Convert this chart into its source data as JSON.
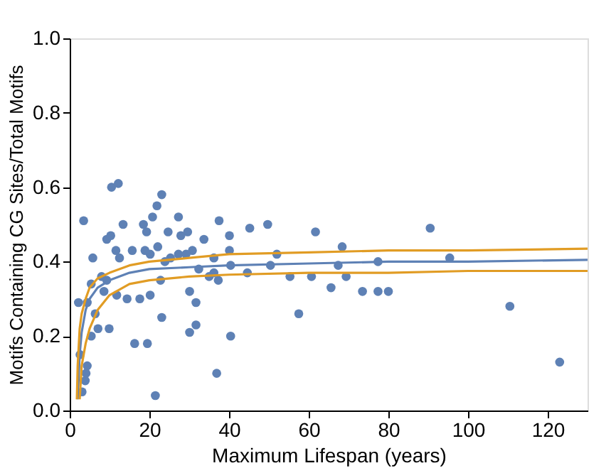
{
  "chart_data": {
    "type": "scatter",
    "xlabel": "Maximum Lifespan (years)",
    "ylabel": "Motifs Containing CG Sites/Total Motifs",
    "xlim": [
      0,
      130
    ],
    "ylim": [
      0,
      1
    ],
    "xticks": [
      0,
      20,
      40,
      60,
      80,
      100,
      120
    ],
    "yticks": [
      {
        "value": 0,
        "label": "0.0"
      },
      0.2,
      0.4,
      0.6,
      0.8,
      {
        "value": 1,
        "label": "1.0"
      }
    ],
    "grid": false,
    "series": [
      {
        "marker": "circle",
        "color": "#5e81b5",
        "x": [
          3.5,
          2.2,
          4.4,
          2.6,
          4.4,
          3.9,
          3.1,
          4.1,
          5.8,
          5.4,
          6.4,
          5.4,
          7.1,
          9.3,
          10.3,
          9.9,
          8.6,
          10.5,
          12.2,
          11.6,
          12.5,
          11.8,
          13.4,
          14.4,
          15.7,
          16.3,
          17.6,
          18.5,
          19.3,
          19.5,
          20.2,
          20.8,
          21.9,
          23.1,
          21.5,
          23.1,
          22.8,
          24.7,
          27.3,
          27.9,
          29.6,
          30.1,
          31.7,
          31.7,
          30.1,
          30.8,
          32.4,
          33.7,
          36.2,
          37.3,
          37.5,
          36.9,
          40.1,
          40.1,
          40.4,
          40.4,
          44.6,
          45.2,
          49.7,
          50.4,
          52,
          55.3,
          57.5,
          60.7,
          61.7,
          65.6,
          67.4,
          68.4,
          69.4,
          73.5,
          77.4,
          77.4,
          80,
          90.5,
          95.4,
          110.5,
          123,
          20.2,
          22.1,
          23.9,
          25.3,
          18.9,
          27.3,
          29.2,
          8,
          9.3,
          35,
          36.2
        ],
        "values": [
          0.51,
          0.29,
          0.29,
          0.15,
          0.12,
          0.08,
          0.05,
          0.1,
          0.41,
          0.34,
          0.26,
          0.2,
          0.22,
          0.46,
          0.47,
          0.22,
          0.32,
          0.6,
          0.61,
          0.43,
          0.41,
          0.31,
          0.5,
          0.3,
          0.43,
          0.18,
          0.3,
          0.5,
          0.48,
          0.18,
          0.31,
          0.52,
          0.55,
          0.58,
          0.04,
          0.25,
          0.35,
          0.48,
          0.52,
          0.47,
          0.48,
          0.21,
          0.23,
          0.29,
          0.32,
          0.43,
          0.38,
          0.46,
          0.37,
          0.35,
          0.51,
          0.1,
          0.47,
          0.43,
          0.39,
          0.2,
          0.37,
          0.49,
          0.5,
          0.39,
          0.42,
          0.36,
          0.26,
          0.36,
          0.48,
          0.33,
          0.39,
          0.44,
          0.36,
          0.32,
          0.4,
          0.32,
          0.32,
          0.49,
          0.41,
          0.28,
          0.13,
          0.42,
          0.44,
          0.4,
          0.41,
          0.43,
          0.42,
          0.42,
          0.36,
          0.35,
          0.36,
          0.41
        ]
      },
      {
        "type": "line",
        "marker": "none",
        "color": "#5e81b5",
        "x": [
          2,
          2.5,
          3,
          4,
          5,
          7,
          10,
          15,
          20,
          30,
          40,
          60,
          80,
          100,
          130
        ],
        "values": [
          0.03,
          0.15,
          0.21,
          0.27,
          0.3,
          0.33,
          0.35,
          0.37,
          0.38,
          0.385,
          0.39,
          0.395,
          0.4,
          0.4,
          0.405
        ]
      },
      {
        "type": "line",
        "marker": "none",
        "color": "#e19c24",
        "x": [
          1.8,
          2,
          2.5,
          3,
          4,
          5,
          7,
          10,
          15,
          20,
          30,
          40,
          60,
          80,
          100,
          130
        ],
        "values": [
          0.03,
          0.12,
          0.22,
          0.26,
          0.3,
          0.33,
          0.355,
          0.37,
          0.39,
          0.4,
          0.41,
          0.42,
          0.425,
          0.43,
          0.43,
          0.435
        ]
      },
      {
        "type": "line",
        "marker": "none",
        "color": "#e19c24",
        "x": [
          2.5,
          3,
          4,
          5,
          7,
          10,
          15,
          20,
          30,
          40,
          60,
          80,
          100,
          130
        ],
        "values": [
          0.03,
          0.12,
          0.18,
          0.22,
          0.27,
          0.31,
          0.34,
          0.35,
          0.36,
          0.365,
          0.37,
          0.37,
          0.375,
          0.375
        ]
      }
    ]
  }
}
